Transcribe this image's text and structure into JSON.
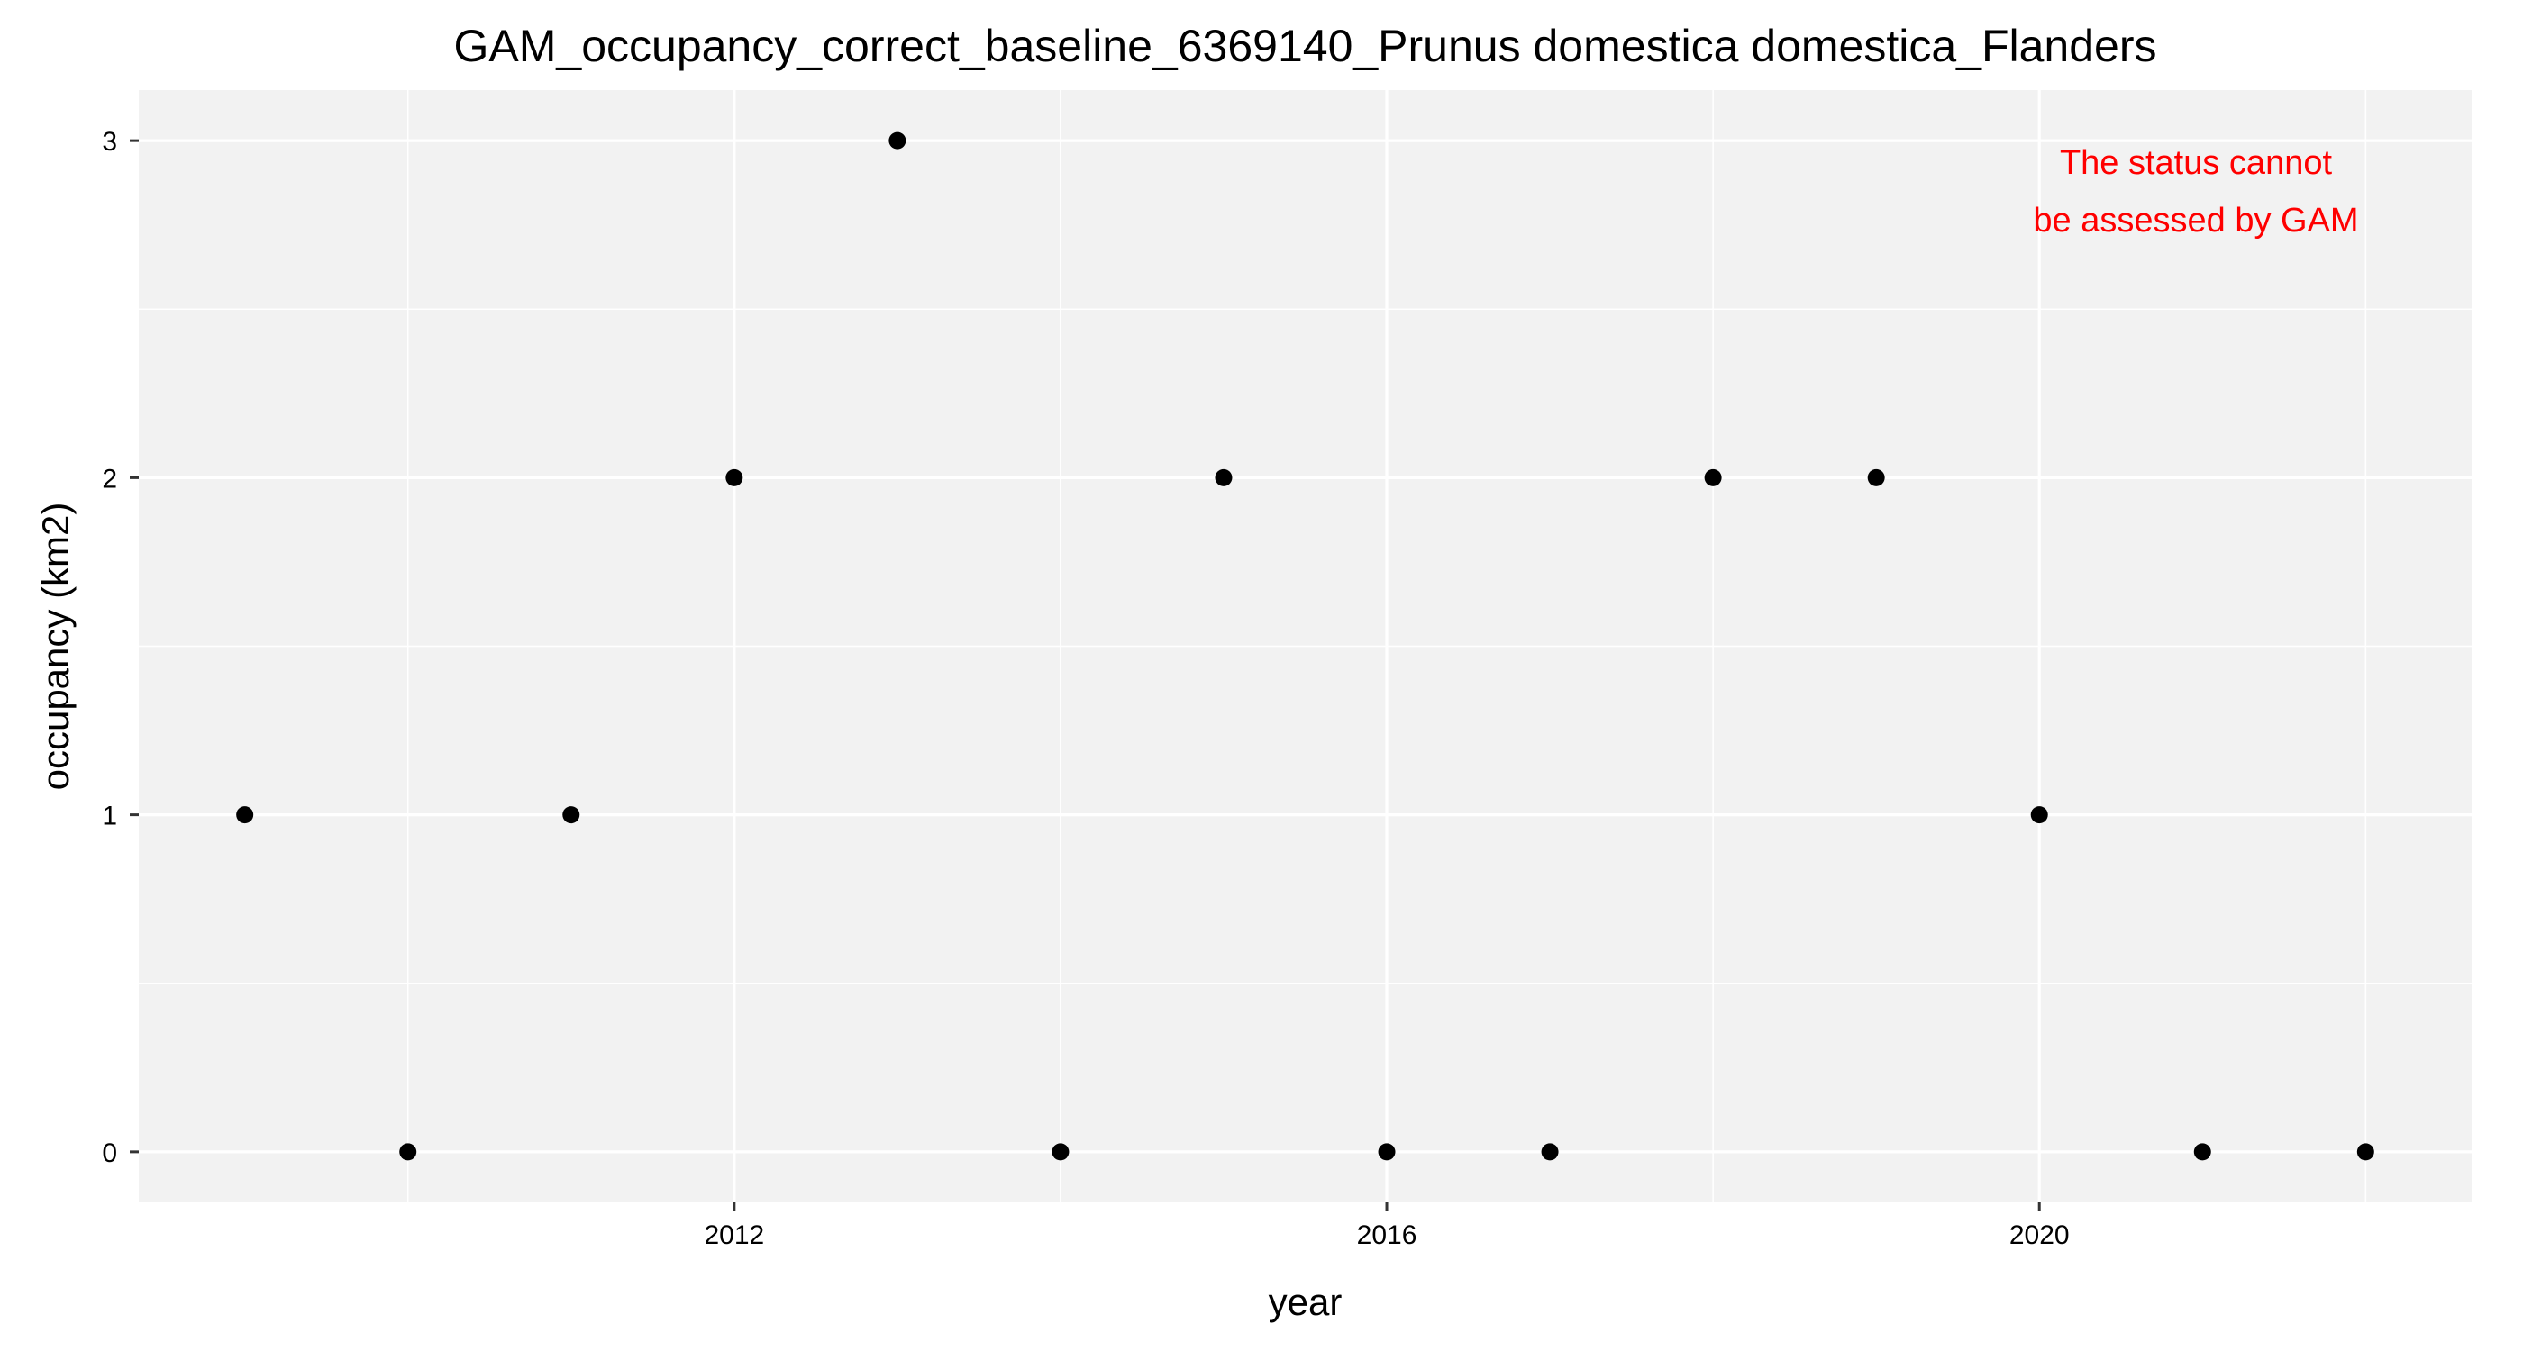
{
  "chart_data": {
    "type": "scatter",
    "title": "GAM_occupancy_correct_baseline_6369140_Prunus domestica domestica_Flanders",
    "xlabel": "year",
    "ylabel": "occupancy (km2)",
    "x": [
      2009,
      2010,
      2011,
      2012,
      2013,
      2014,
      2015,
      2016,
      2017,
      2018,
      2019,
      2020,
      2021,
      2022
    ],
    "y": [
      1,
      0,
      1,
      2,
      3,
      0,
      2,
      0,
      0,
      2,
      2,
      1,
      0,
      0
    ],
    "xlim": [
      2008.35,
      2022.65
    ],
    "ylim": [
      -0.15,
      3.15
    ],
    "x_ticks": [
      2012,
      2016,
      2020
    ],
    "x_tick_labels": [
      "2012",
      "2016",
      "2020"
    ],
    "x_minor_ticks": [
      2010,
      2014,
      2018,
      2022
    ],
    "y_ticks": [
      0,
      1,
      2,
      3
    ],
    "y_tick_labels": [
      "0",
      "1",
      "2",
      "3"
    ],
    "y_minor_ticks": [
      0.5,
      1.5,
      2.5
    ],
    "grid": true,
    "legend": "none",
    "annotation": {
      "lines": [
        "The status cannot",
        "be assessed by GAM"
      ],
      "color": "#FF0000",
      "position": "top-right"
    },
    "colors": {
      "panel_background": "#F2F2F2",
      "grid": "#FFFFFF",
      "points": "#000000",
      "text": "#000000",
      "tick_marks": "#333333"
    }
  }
}
